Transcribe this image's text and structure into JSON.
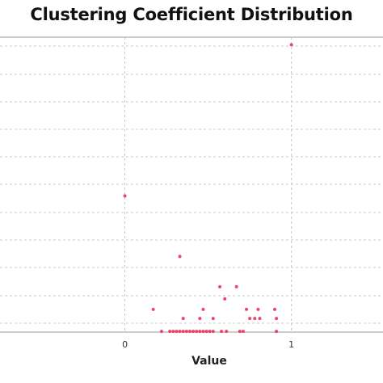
{
  "chart_data": {
    "type": "scatter",
    "title": "Clustering Coefficient Distribution",
    "xlabel": "Value",
    "ylabel": "",
    "xlim": [
      -0.75,
      1.55
    ],
    "ylim": [
      0,
      19.5
    ],
    "x_ticks": [
      "0",
      "1"
    ],
    "grid": true,
    "point_color": "#e8466b",
    "points": [
      {
        "x": 1.0,
        "y": 19
      },
      {
        "x": 0.0,
        "y": 9
      },
      {
        "x": 0.33,
        "y": 5
      },
      {
        "x": 0.57,
        "y": 3
      },
      {
        "x": 0.67,
        "y": 3
      },
      {
        "x": 0.6,
        "y": 2.2
      },
      {
        "x": 0.17,
        "y": 1.5
      },
      {
        "x": 0.47,
        "y": 1.5
      },
      {
        "x": 0.73,
        "y": 1.5
      },
      {
        "x": 0.8,
        "y": 1.5
      },
      {
        "x": 0.9,
        "y": 1.5
      },
      {
        "x": 0.35,
        "y": 0.9
      },
      {
        "x": 0.45,
        "y": 0.9
      },
      {
        "x": 0.53,
        "y": 0.9
      },
      {
        "x": 0.75,
        "y": 0.9
      },
      {
        "x": 0.78,
        "y": 0.9
      },
      {
        "x": 0.81,
        "y": 0.9
      },
      {
        "x": 0.91,
        "y": 0.9
      },
      {
        "x": 0.22,
        "y": 0.05
      },
      {
        "x": 0.27,
        "y": 0.05
      },
      {
        "x": 0.29,
        "y": 0.05
      },
      {
        "x": 0.31,
        "y": 0.05
      },
      {
        "x": 0.33,
        "y": 0.05
      },
      {
        "x": 0.35,
        "y": 0.05
      },
      {
        "x": 0.37,
        "y": 0.05
      },
      {
        "x": 0.39,
        "y": 0.05
      },
      {
        "x": 0.41,
        "y": 0.05
      },
      {
        "x": 0.43,
        "y": 0.05
      },
      {
        "x": 0.45,
        "y": 0.05
      },
      {
        "x": 0.47,
        "y": 0.05
      },
      {
        "x": 0.49,
        "y": 0.05
      },
      {
        "x": 0.51,
        "y": 0.05
      },
      {
        "x": 0.53,
        "y": 0.05
      },
      {
        "x": 0.58,
        "y": 0.05
      },
      {
        "x": 0.61,
        "y": 0.05
      },
      {
        "x": 0.69,
        "y": 0.05
      },
      {
        "x": 0.71,
        "y": 0.05
      },
      {
        "x": 0.91,
        "y": 0.05
      }
    ]
  }
}
